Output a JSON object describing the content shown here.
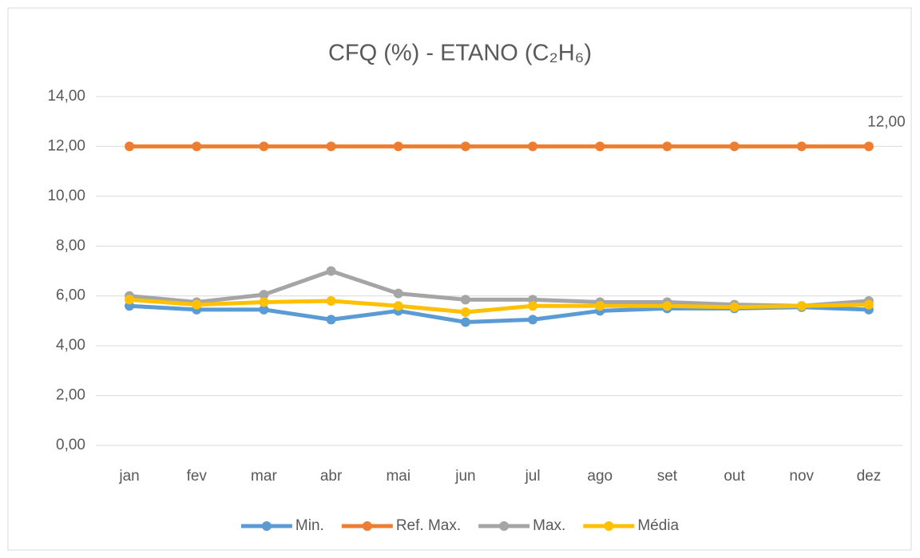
{
  "chart_data": {
    "type": "line",
    "title": "CFQ (%) - ETANO (C₂H₆)",
    "categories": [
      "jan",
      "fev",
      "mar",
      "abr",
      "mai",
      "jun",
      "jul",
      "ago",
      "set",
      "out",
      "nov",
      "dez"
    ],
    "series": [
      {
        "name": "Min.",
        "color": "#5b9bd5",
        "values": [
          5.6,
          5.45,
          5.45,
          5.05,
          5.4,
          4.95,
          5.05,
          5.4,
          5.5,
          5.5,
          5.55,
          5.45
        ]
      },
      {
        "name": "Ref. Max.",
        "color": "#ed7d31",
        "values": [
          12,
          12,
          12,
          12,
          12,
          12,
          12,
          12,
          12,
          12,
          12,
          12
        ],
        "value_labels": [
          null,
          null,
          null,
          null,
          null,
          null,
          null,
          null,
          null,
          null,
          null,
          "12,00"
        ]
      },
      {
        "name": "Max.",
        "color": "#a5a5a5",
        "values": [
          6.0,
          5.75,
          6.05,
          7.0,
          6.1,
          5.85,
          5.85,
          5.75,
          5.75,
          5.65,
          5.6,
          5.8
        ]
      },
      {
        "name": "Média",
        "color": "#ffc000",
        "values": [
          5.85,
          5.65,
          5.75,
          5.8,
          5.6,
          5.35,
          5.6,
          5.6,
          5.6,
          5.55,
          5.6,
          5.65
        ]
      }
    ],
    "ylim": [
      0,
      14
    ],
    "yticks": [
      {
        "value": 0,
        "label": "0,00"
      },
      {
        "value": 2,
        "label": "2,00"
      },
      {
        "value": 4,
        "label": "4,00"
      },
      {
        "value": 6,
        "label": "6,00"
      },
      {
        "value": 8,
        "label": "8,00"
      },
      {
        "value": 10,
        "label": "10,00"
      },
      {
        "value": 12,
        "label": "12,00"
      },
      {
        "value": 14,
        "label": "14,00"
      }
    ],
    "grid": true,
    "legend": "bottom"
  }
}
